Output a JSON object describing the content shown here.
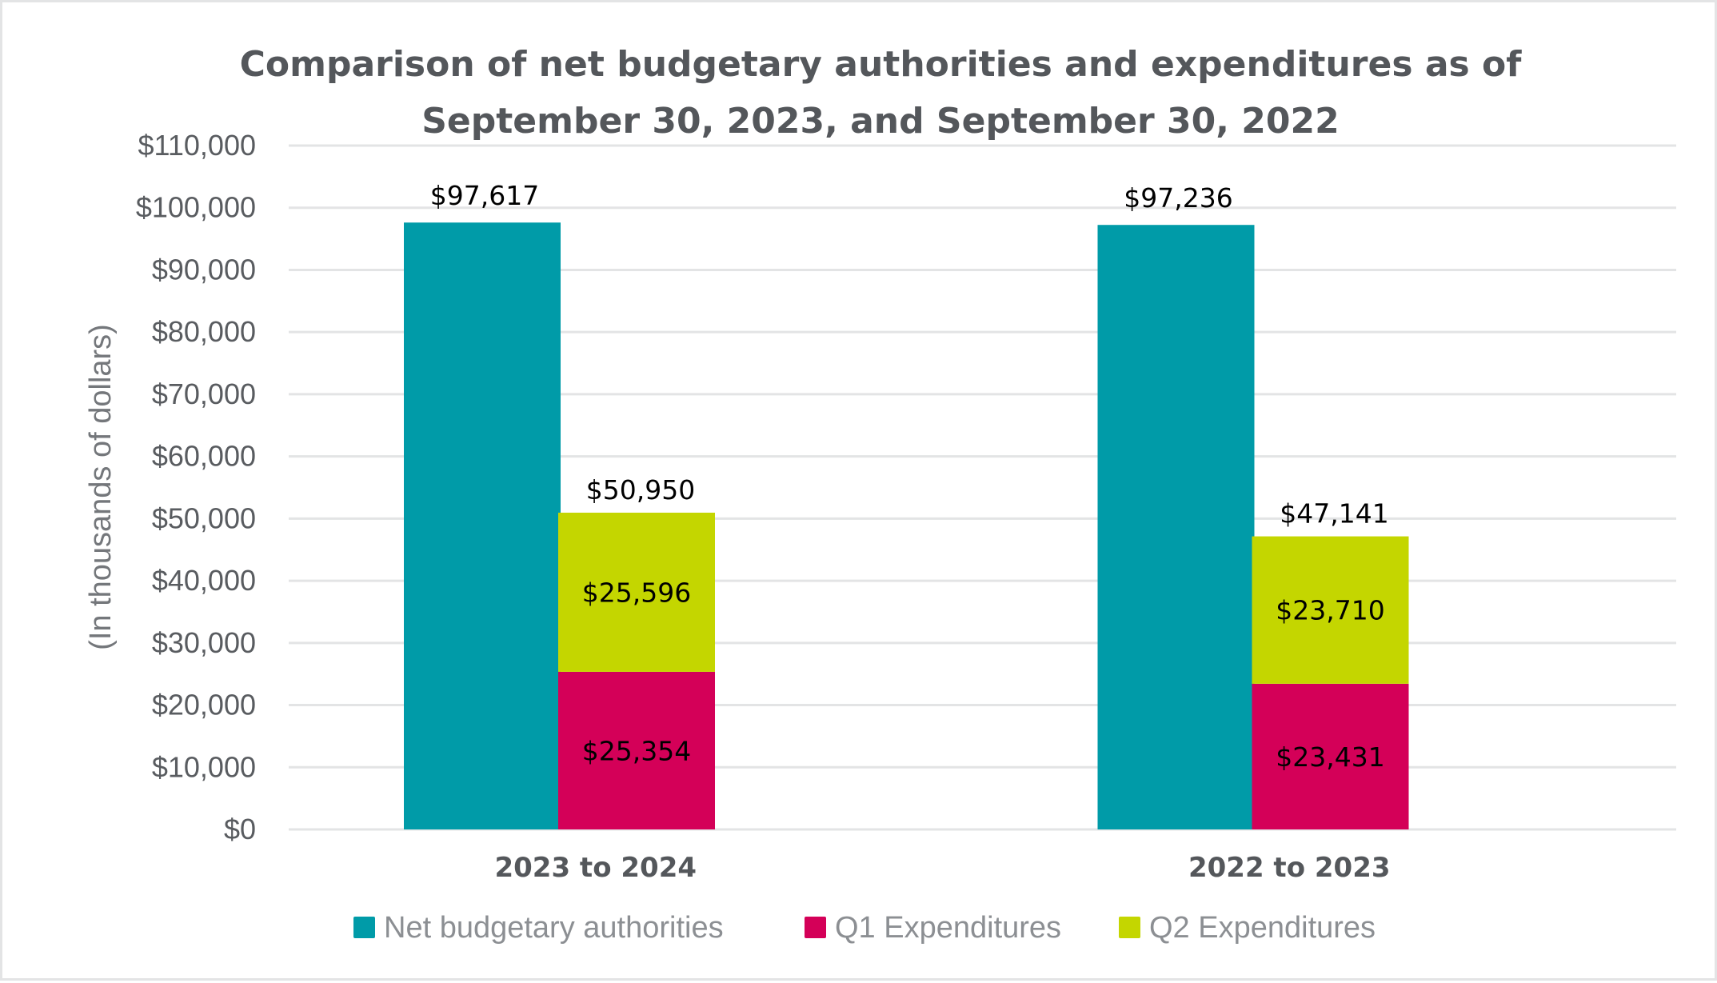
{
  "chart_data": {
    "type": "bar",
    "subtype": "grouped-and-stacked",
    "title": "Comparison of net budgetary authorities and expenditures as of September 30, 2023, and September 30, 2022",
    "title_lines": [
      "Comparison of net budgetary authorities and expenditures as of",
      "September 30, 2023, and September 30, 2022"
    ],
    "xlabel": "",
    "ylabel": "(In thousands of dollars)",
    "ylim": [
      0,
      110000
    ],
    "y_ticks": [
      0,
      10000,
      20000,
      30000,
      40000,
      50000,
      60000,
      70000,
      80000,
      90000,
      100000,
      110000
    ],
    "y_tick_labels": [
      "$0",
      "$10,000",
      "$20,000",
      "$30,000",
      "$40,000",
      "$50,000",
      "$60,000",
      "$70,000",
      "$80,000",
      "$90,000",
      "$100,000",
      "$110,000"
    ],
    "grid": true,
    "categories": [
      "2023 to 2024",
      "2022 to 2023"
    ],
    "series": [
      {
        "name": "Net budgetary authorities",
        "color": "#009ba8",
        "stack": "authorities",
        "values": [
          97617,
          97236
        ],
        "labels": [
          "$97,617",
          "$97,236"
        ]
      },
      {
        "name": "Q1 Expenditures",
        "color": "#d40058",
        "stack": "expenditures",
        "values": [
          25354,
          23431
        ],
        "labels": [
          "$25,354",
          "$23,431"
        ]
      },
      {
        "name": "Q2 Expenditures",
        "color": "#c4d600",
        "stack": "expenditures",
        "values": [
          25596,
          23710
        ],
        "labels": [
          "$25,596",
          "$23,710"
        ]
      }
    ],
    "stack_totals": {
      "expenditures": {
        "values": [
          50950,
          47141
        ],
        "labels": [
          "$50,950",
          "$47,141"
        ]
      }
    },
    "legend": {
      "position": "bottom",
      "entries": [
        "Net budgetary authorities",
        "Q1 Expenditures",
        "Q2 Expenditures"
      ]
    }
  }
}
